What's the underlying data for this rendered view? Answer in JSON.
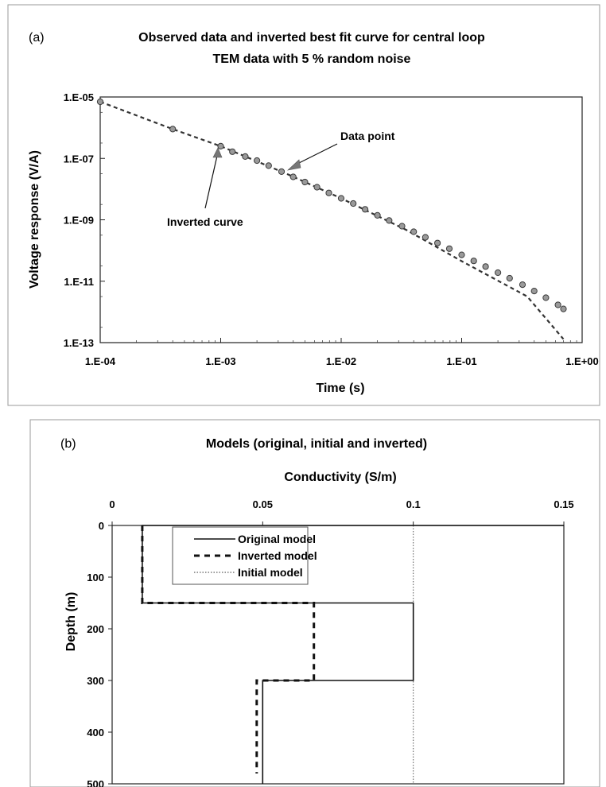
{
  "chart_data": [
    {
      "panel_label": "(a)",
      "type": "scatter",
      "title_line1": "Observed data and inverted best fit curve for central loop",
      "title_line2": "TEM data with 5 % random noise",
      "xlabel": "Time (s)",
      "ylabel": "Voltage response (V/A)",
      "x_scale": "log",
      "y_scale": "log",
      "xlim": [
        0.0001,
        1
      ],
      "ylim": [
        1e-13,
        1e-05
      ],
      "x_tick_labels": [
        "1.E-04",
        "1.E-03",
        "1.E-02",
        "1.E-01",
        "1.E+00"
      ],
      "y_tick_labels": [
        "1.E-05",
        "1.E-07",
        "1.E-09",
        "1.E-11",
        "1.E-13"
      ],
      "grid": "off",
      "annotations": [
        "Data point",
        "Inverted curve"
      ],
      "series": [
        {
          "style": "dashed-line",
          "x": [
            0.0001,
            0.0004,
            0.001,
            0.0035,
            0.01,
            0.035,
            0.1,
            0.35,
            0.7
          ],
          "y": [
            7e-06,
            9e-07,
            2.5e-07,
            3.2e-08,
            5e-09,
            4.6e-10,
            4.5e-11,
            3.2e-12,
            1.3e-13
          ]
        },
        {
          "style": "markers",
          "x": [
            0.0001,
            0.0004,
            0.001,
            0.00125,
            0.0016,
            0.002,
            0.0025,
            0.0032,
            0.004,
            0.005,
            0.0063,
            0.0079,
            0.01,
            0.0126,
            0.0158,
            0.02,
            0.025,
            0.032,
            0.04,
            0.05,
            0.063,
            0.079,
            0.1,
            0.126,
            0.158,
            0.2,
            0.25,
            0.32,
            0.4,
            0.5,
            0.63,
            0.7
          ],
          "y": [
            7e-06,
            9e-07,
            2.5e-07,
            1.65e-07,
            1.15e-07,
            8.5e-08,
            5.8e-08,
            3.7e-08,
            2.5e-08,
            1.7e-08,
            1.15e-08,
            7.5e-09,
            5e-09,
            3.4e-09,
            2.2e-09,
            1.4e-09,
            9.5e-10,
            6.2e-10,
            4.1e-10,
            2.7e-10,
            1.75e-10,
            1.15e-10,
            7.2e-11,
            4.6e-11,
            3e-11,
            1.9e-11,
            1.25e-11,
            7.7e-12,
            4.8e-12,
            2.9e-12,
            1.7e-12,
            1.25e-12
          ]
        }
      ]
    },
    {
      "panel_label": "(b)",
      "type": "line",
      "title": "Models (original, initial and inverted)",
      "xlabel": "Conductivity (S/m)",
      "ylabel": "Depth (m)",
      "xlim": [
        0,
        0.15
      ],
      "ylim": [
        0,
        500
      ],
      "x_tick_labels": [
        "0",
        "0.05",
        "0.1",
        "0.15"
      ],
      "y_tick_labels": [
        "0",
        "100",
        "200",
        "300",
        "400",
        "500"
      ],
      "grid": "off",
      "legend_position": "top-left",
      "series": [
        {
          "name": "Original model",
          "style": "solid",
          "x": [
            0.15,
            0.15,
            0.01,
            0.01,
            0.1,
            0.1,
            0.05,
            0.05
          ],
          "y": [
            0,
            0,
            0,
            150,
            150,
            300,
            300,
            500
          ]
        },
        {
          "name": "Inverted model",
          "style": "dashed",
          "x": [
            0.01,
            0.01,
            0.067,
            0.067,
            0.048,
            0.048
          ],
          "y": [
            0,
            150,
            150,
            300,
            300,
            480
          ]
        },
        {
          "name": "Initial model",
          "style": "dotted",
          "x": [
            0.1,
            0.1
          ],
          "y": [
            0,
            500
          ]
        }
      ]
    }
  ]
}
